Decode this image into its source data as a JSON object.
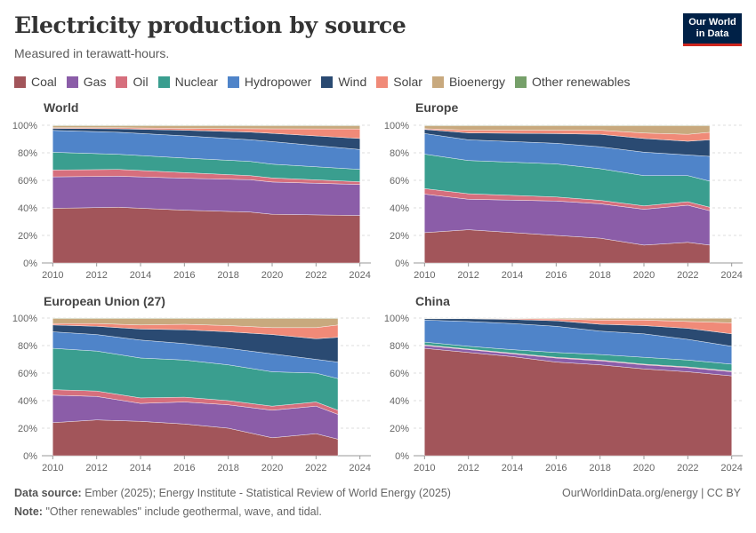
{
  "header": {
    "title": "Electricity production by source",
    "subtitle": "Measured in terawatt-hours.",
    "logo_line1": "Our World",
    "logo_line2": "in Data"
  },
  "footer": {
    "source_label": "Data source:",
    "source_text": "Ember (2025); Energy Institute - Statistical Review of World Energy (2025)",
    "note_label": "Note:",
    "note_text": "\"Other renewables\" include geothermal, wave, and tidal.",
    "credit": "OurWorldinData.org/energy | CC BY"
  },
  "chart_data": {
    "type": "area",
    "stacked": true,
    "relative": true,
    "x_ticks": [
      "2010",
      "2012",
      "2014",
      "2016",
      "2018",
      "2020",
      "2022",
      "2024"
    ],
    "y_ticks": [
      "0%",
      "20%",
      "40%",
      "60%",
      "80%",
      "100%"
    ],
    "xlim": [
      2009.5,
      2024.5
    ],
    "ylim": [
      0,
      100
    ],
    "legend_position": "top",
    "sources": [
      {
        "name": "Coal",
        "color": "#a2555a"
      },
      {
        "name": "Gas",
        "color": "#8b5da8"
      },
      {
        "name": "Oil",
        "color": "#d66f7d"
      },
      {
        "name": "Nuclear",
        "color": "#3a9e8f"
      },
      {
        "name": "Hydropower",
        "color": "#4f84c9"
      },
      {
        "name": "Wind",
        "color": "#2a4a72"
      },
      {
        "name": "Solar",
        "color": "#f08a78"
      },
      {
        "name": "Bioenergy",
        "color": "#c8a97e"
      },
      {
        "name": "Other renewables",
        "color": "#76a06a"
      }
    ],
    "panels": [
      {
        "title": "World",
        "x": [
          2010,
          2013,
          2016,
          2019,
          2020,
          2024
        ],
        "series": {
          "Coal": [
            40,
            40.5,
            38,
            37,
            35.5,
            34.5
          ],
          "Gas": [
            23,
            22.5,
            23,
            23.5,
            23.5,
            22.5
          ],
          "Oil": [
            5,
            5,
            4,
            3,
            3,
            2
          ],
          "Nuclear": [
            13,
            11,
            10.5,
            10.3,
            10,
            9
          ],
          "Hydropower": [
            16,
            16,
            16,
            15.8,
            16.5,
            14.5
          ],
          "Wind": [
            1.5,
            2.5,
            4,
            5.5,
            6,
            8
          ],
          "Solar": [
            0.5,
            0.8,
            1.3,
            2.5,
            3.3,
            6.9
          ],
          "Bioenergy": [
            1.5,
            1.5,
            2,
            2.2,
            2.3,
            2.4
          ],
          "Other renewables": [
            0.3,
            0.3,
            0.3,
            0.3,
            0.3,
            0.3
          ]
        }
      },
      {
        "title": "Europe",
        "x": [
          2010,
          2012,
          2016,
          2018,
          2020,
          2022,
          2023
        ],
        "series": {
          "Coal": [
            22,
            24,
            20,
            18,
            13,
            15,
            13
          ],
          "Gas": [
            28,
            22,
            25,
            25,
            26,
            27,
            25
          ],
          "Oil": [
            4,
            4,
            3,
            2.5,
            2.5,
            2.5,
            2.5
          ],
          "Nuclear": [
            25,
            24,
            24,
            23,
            22,
            19,
            19
          ],
          "Hydropower": [
            15,
            15,
            15,
            16,
            17,
            15,
            18
          ],
          "Wind": [
            3,
            5,
            7,
            9,
            10,
            10,
            12
          ],
          "Solar": [
            0.5,
            2,
            2.5,
            3,
            4,
            5,
            5.5
          ],
          "Bioenergy": [
            2.2,
            3.2,
            3.3,
            3.3,
            5.3,
            6.3,
            4.8
          ],
          "Other renewables": [
            0.3,
            0.3,
            0.3,
            0.3,
            0.3,
            0.3,
            0.3
          ]
        }
      },
      {
        "title": "European Union (27)",
        "x": [
          2010,
          2012,
          2014,
          2016,
          2018,
          2020,
          2022,
          2023
        ],
        "series": {
          "Coal": [
            24,
            26,
            25,
            23,
            20,
            13,
            16,
            12
          ],
          "Gas": [
            20,
            17,
            13,
            16,
            17,
            20,
            20,
            18
          ],
          "Oil": [
            4,
            4,
            4,
            3.5,
            3,
            3,
            3,
            3
          ],
          "Nuclear": [
            30,
            29,
            29,
            27,
            26,
            25,
            21,
            23
          ],
          "Hydropower": [
            12,
            12,
            13,
            12,
            12,
            13,
            10,
            12
          ],
          "Wind": [
            5,
            6,
            8,
            10,
            12,
            14,
            15,
            18
          ],
          "Solar": [
            1,
            2,
            3,
            4,
            4.5,
            5,
            8,
            9
          ],
          "Bioenergy": [
            3.7,
            3.7,
            4.7,
            4.2,
            5.2,
            6.7,
            6.7,
            4.7
          ],
          "Other renewables": [
            0.3,
            0.3,
            0.3,
            0.3,
            0.3,
            0.3,
            0.3,
            0.3
          ]
        }
      },
      {
        "title": "China",
        "x": [
          2010,
          2012,
          2014,
          2016,
          2018,
          2020,
          2022,
          2024
        ],
        "series": {
          "Coal": [
            78,
            75,
            72,
            68,
            66,
            63,
            61,
            58
          ],
          "Gas": [
            2,
            2,
            2,
            3,
            3,
            3,
            3,
            3
          ],
          "Oil": [
            0.5,
            0.5,
            0.5,
            0.5,
            0.5,
            0.5,
            0.5,
            0.5
          ],
          "Nuclear": [
            2,
            2,
            2.5,
            3.5,
            4,
            5,
            5,
            5
          ],
          "Hydropower": [
            16,
            18,
            19,
            19,
            17,
            17,
            15,
            13
          ],
          "Wind": [
            1,
            2,
            3,
            4,
            5,
            6,
            8,
            9
          ],
          "Solar": [
            0.1,
            0.2,
            0.5,
            1.3,
            3,
            4,
            5,
            8
          ],
          "Bioenergy": [
            0.2,
            0.2,
            0.3,
            0.5,
            1.3,
            1.3,
            2.3,
            3.3
          ],
          "Other renewables": [
            0.2,
            0.1,
            0.2,
            0.2,
            0.2,
            0.2,
            0.2,
            0.2
          ]
        }
      }
    ]
  }
}
